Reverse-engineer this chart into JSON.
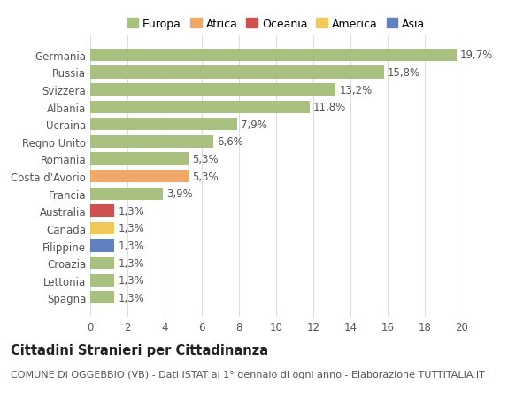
{
  "categories": [
    "Germania",
    "Russia",
    "Svizzera",
    "Albania",
    "Ucraina",
    "Regno Unito",
    "Romania",
    "Costa d'Avorio",
    "Francia",
    "Australia",
    "Canada",
    "Filippine",
    "Croazia",
    "Lettonia",
    "Spagna"
  ],
  "values": [
    19.7,
    15.8,
    13.2,
    11.8,
    7.9,
    6.6,
    5.3,
    5.3,
    3.9,
    1.3,
    1.3,
    1.3,
    1.3,
    1.3,
    1.3
  ],
  "labels": [
    "19,7%",
    "15,8%",
    "13,2%",
    "11,8%",
    "7,9%",
    "6,6%",
    "5,3%",
    "5,3%",
    "3,9%",
    "1,3%",
    "1,3%",
    "1,3%",
    "1,3%",
    "1,3%",
    "1,3%"
  ],
  "bar_colors": [
    "#a8c080",
    "#a8c080",
    "#a8c080",
    "#a8c080",
    "#a8c080",
    "#a8c080",
    "#a8c080",
    "#f0a868",
    "#a8c080",
    "#d05050",
    "#f0c858",
    "#6080c0",
    "#a8c080",
    "#a8c080",
    "#a8c080"
  ],
  "legend_labels": [
    "Europa",
    "Africa",
    "Oceania",
    "America",
    "Asia"
  ],
  "legend_colors": [
    "#a8c080",
    "#f0a868",
    "#d05050",
    "#f0c858",
    "#6080c0"
  ],
  "title": "Cittadini Stranieri per Cittadinanza",
  "subtitle": "COMUNE DI OGGEBBIO (VB) - Dati ISTAT al 1° gennaio di ogni anno - Elaborazione TUTTITALIA.IT",
  "xlim": [
    0,
    20
  ],
  "xticks": [
    0,
    2,
    4,
    6,
    8,
    10,
    12,
    14,
    16,
    18,
    20
  ],
  "bg_color": "#ffffff",
  "grid_color": "#dddddd",
  "bar_height": 0.72,
  "label_fontsize": 8.5,
  "tick_fontsize": 8.5,
  "title_fontsize": 10.5,
  "subtitle_fontsize": 8.0,
  "legend_fontsize": 9
}
